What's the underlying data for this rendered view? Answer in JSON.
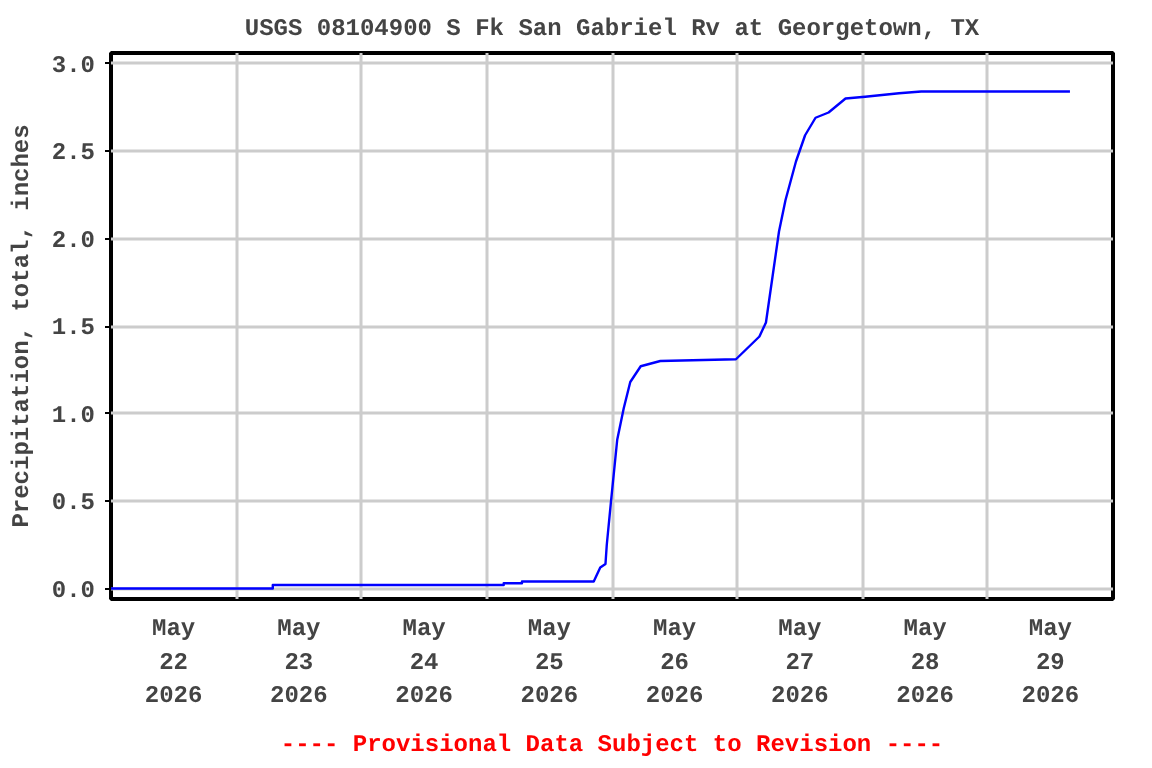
{
  "chart_data": {
    "type": "line",
    "title": "USGS 08104900 S Fk San Gabriel Rv at Georgetown, TX",
    "ylabel": "Precipitation, total, inches",
    "annotations": [
      "---- Provisional Data Subject to Revision ----"
    ],
    "x": [
      "2026-05-22T00:00",
      "2026-05-23T07:00",
      "2026-05-23T07:00",
      "2026-05-25T03:15",
      "2026-05-25T03:15",
      "2026-05-25T06:45",
      "2026-05-25T06:45",
      "2026-05-25T20:30",
      "2026-05-25T21:45",
      "2026-05-25T22:45",
      "2026-05-25T23:00",
      "2026-05-25T23:45",
      "2026-05-26T01:00",
      "2026-05-26T02:15",
      "2026-05-26T03:30",
      "2026-05-26T05:30",
      "2026-05-26T09:15",
      "2026-05-26T23:45",
      "2026-05-27T04:15",
      "2026-05-27T05:30",
      "2026-05-27T06:45",
      "2026-05-27T08:00",
      "2026-05-27T09:15",
      "2026-05-27T11:15",
      "2026-05-27T13:00",
      "2026-05-27T15:00",
      "2026-05-27T17:30",
      "2026-05-27T20:45",
      "2026-05-28T00:30",
      "2026-05-28T07:00",
      "2026-05-28T11:15",
      "2026-05-29T15:45"
    ],
    "series": [
      {
        "color": "#0000ff",
        "values": [
          0.0,
          0.0,
          0.02,
          0.02,
          0.03,
          0.03,
          0.04,
          0.04,
          0.12,
          0.14,
          0.25,
          0.48,
          0.85,
          1.03,
          1.18,
          1.27,
          1.3,
          1.31,
          1.44,
          1.52,
          1.78,
          2.04,
          2.22,
          2.44,
          2.59,
          2.69,
          2.72,
          2.8,
          2.81,
          2.83,
          2.84,
          2.84
        ]
      }
    ],
    "xlim": [
      "2026-05-22T00:00",
      "2026-05-30T00:00"
    ],
    "xticks": [
      {
        "value": "2026-05-22T00:00",
        "label": null
      },
      {
        "value": "2026-05-22T12:00",
        "label": "May\n22\n2026"
      },
      {
        "value": "2026-05-23T00:00",
        "label": null
      },
      {
        "value": "2026-05-23T12:00",
        "label": "May\n23\n2026"
      },
      {
        "value": "2026-05-24T00:00",
        "label": null
      },
      {
        "value": "2026-05-24T12:00",
        "label": "May\n24\n2026"
      },
      {
        "value": "2026-05-25T00:00",
        "label": null
      },
      {
        "value": "2026-05-25T12:00",
        "label": "May\n25\n2026"
      },
      {
        "value": "2026-05-26T00:00",
        "label": null
      },
      {
        "value": "2026-05-26T12:00",
        "label": "May\n26\n2026"
      },
      {
        "value": "2026-05-27T00:00",
        "label": null
      },
      {
        "value": "2026-05-27T12:00",
        "label": "May\n27\n2026"
      },
      {
        "value": "2026-05-28T00:00",
        "label": null
      },
      {
        "value": "2026-05-28T12:00",
        "label": "May\n28\n2026"
      },
      {
        "value": "2026-05-29T00:00",
        "label": null
      },
      {
        "value": "2026-05-29T12:00",
        "label": "May\n29\n2026"
      },
      {
        "value": "2026-05-30T00:00",
        "label": null
      }
    ],
    "ylim": [
      -0.06,
      3.06
    ],
    "yticks": [
      {
        "value": 0,
        "label": "0.0"
      },
      {
        "value": 0.5,
        "label": "0.5"
      },
      {
        "value": 1,
        "label": "1.0"
      },
      {
        "value": 1.5,
        "label": "1.5"
      },
      {
        "value": 2,
        "label": "2.0"
      },
      {
        "value": 2.5,
        "label": "2.5"
      },
      {
        "value": 3,
        "label": "3.0"
      }
    ],
    "grid": true,
    "line_style": "solid"
  }
}
